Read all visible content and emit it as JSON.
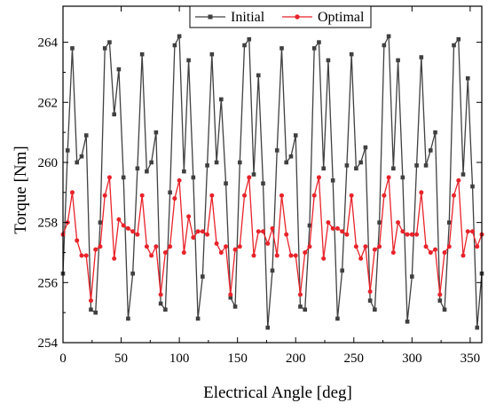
{
  "chart_data": {
    "type": "line",
    "title": "",
    "xlabel": "Electrical Angle [deg]",
    "ylabel": "Torque [Nm]",
    "xlim": [
      0,
      360
    ],
    "ylim": [
      254,
      265.2
    ],
    "xticks": [
      0,
      50,
      100,
      150,
      200,
      250,
      300,
      350
    ],
    "yticks": [
      254,
      256,
      258,
      260,
      262,
      264
    ],
    "grid": false,
    "legend_position": "top-center",
    "series": [
      {
        "name": "Initial",
        "color": "#404040",
        "marker": "square",
        "x": [
          0,
          4,
          8,
          12,
          16,
          20,
          24,
          28,
          32,
          36,
          40,
          44,
          48,
          52,
          56,
          60,
          64,
          68,
          72,
          76,
          80,
          84,
          88,
          92,
          96,
          100,
          104,
          108,
          112,
          116,
          120,
          124,
          128,
          132,
          136,
          140,
          144,
          148,
          152,
          156,
          160,
          164,
          168,
          172,
          176,
          180,
          184,
          188,
          192,
          196,
          200,
          204,
          208,
          212,
          216,
          220,
          224,
          228,
          232,
          236,
          240,
          244,
          248,
          252,
          256,
          260,
          264,
          268,
          272,
          276,
          280,
          284,
          288,
          292,
          296,
          300,
          304,
          308,
          312,
          316,
          320,
          324,
          328,
          332,
          336,
          340,
          344,
          348,
          352,
          356,
          360
        ],
        "values": [
          256.3,
          260.4,
          263.8,
          260.0,
          260.2,
          260.9,
          255.1,
          255.0,
          258.0,
          263.8,
          264.0,
          261.6,
          263.1,
          259.5,
          254.8,
          256.3,
          259.8,
          263.6,
          259.7,
          260.0,
          261.0,
          255.3,
          255.1,
          259.0,
          263.9,
          264.2,
          259.7,
          263.4,
          259.5,
          254.8,
          256.2,
          259.9,
          263.6,
          260.0,
          262.1,
          259.3,
          255.5,
          255.2,
          260.0,
          263.9,
          264.1,
          259.6,
          262.9,
          259.3,
          254.5,
          256.4,
          260.4,
          263.8,
          260.0,
          260.2,
          260.9,
          255.2,
          255.1,
          257.9,
          263.8,
          264.0,
          259.8,
          263.4,
          259.4,
          254.8,
          256.4,
          259.9,
          263.6,
          259.8,
          260.0,
          260.5,
          255.4,
          255.1,
          258.0,
          263.9,
          264.2,
          259.8,
          263.4,
          259.5,
          254.7,
          256.2,
          259.9,
          263.5,
          259.9,
          260.4,
          261.0,
          255.4,
          255.1,
          258.0,
          263.9,
          264.1,
          259.6,
          262.8,
          259.2,
          254.5,
          256.3
        ]
      },
      {
        "name": "Optimal",
        "color": "#e8232a",
        "marker": "circle",
        "x": [
          0,
          4,
          8,
          12,
          16,
          20,
          24,
          28,
          32,
          36,
          40,
          44,
          48,
          52,
          56,
          60,
          64,
          68,
          72,
          76,
          80,
          84,
          88,
          92,
          96,
          100,
          104,
          108,
          112,
          116,
          120,
          124,
          128,
          132,
          136,
          140,
          144,
          148,
          152,
          156,
          160,
          164,
          168,
          172,
          176,
          180,
          184,
          188,
          192,
          196,
          200,
          204,
          208,
          212,
          216,
          220,
          224,
          228,
          232,
          236,
          240,
          244,
          248,
          252,
          256,
          260,
          264,
          268,
          272,
          276,
          280,
          284,
          288,
          292,
          296,
          300,
          304,
          308,
          312,
          316,
          320,
          324,
          328,
          332,
          336,
          340,
          344,
          348,
          352,
          356,
          360
        ],
        "values": [
          257.6,
          258.0,
          259.0,
          257.4,
          256.9,
          256.9,
          255.4,
          257.1,
          257.2,
          258.9,
          259.5,
          256.8,
          258.1,
          257.9,
          257.8,
          257.7,
          257.6,
          258.9,
          257.2,
          256.9,
          257.2,
          255.6,
          257.0,
          257.2,
          258.8,
          259.4,
          257.0,
          258.2,
          257.5,
          257.7,
          257.7,
          257.6,
          258.9,
          257.3,
          257.0,
          257.2,
          255.6,
          257.1,
          257.2,
          258.9,
          259.5,
          256.9,
          257.7,
          257.7,
          257.3,
          257.8,
          256.9,
          258.9,
          257.6,
          256.9,
          256.9,
          255.6,
          257.0,
          257.2,
          258.9,
          259.5,
          256.8,
          258.0,
          257.8,
          257.8,
          257.7,
          257.6,
          258.9,
          257.2,
          256.8,
          257.2,
          255.7,
          257.1,
          257.2,
          258.9,
          259.5,
          257.0,
          258.0,
          257.7,
          257.6,
          257.6,
          257.6,
          259.0,
          257.2,
          257.0,
          257.1,
          255.6,
          257.0,
          257.2,
          258.9,
          259.4,
          256.9,
          257.7,
          257.7,
          257.2,
          257.6
        ]
      }
    ]
  }
}
